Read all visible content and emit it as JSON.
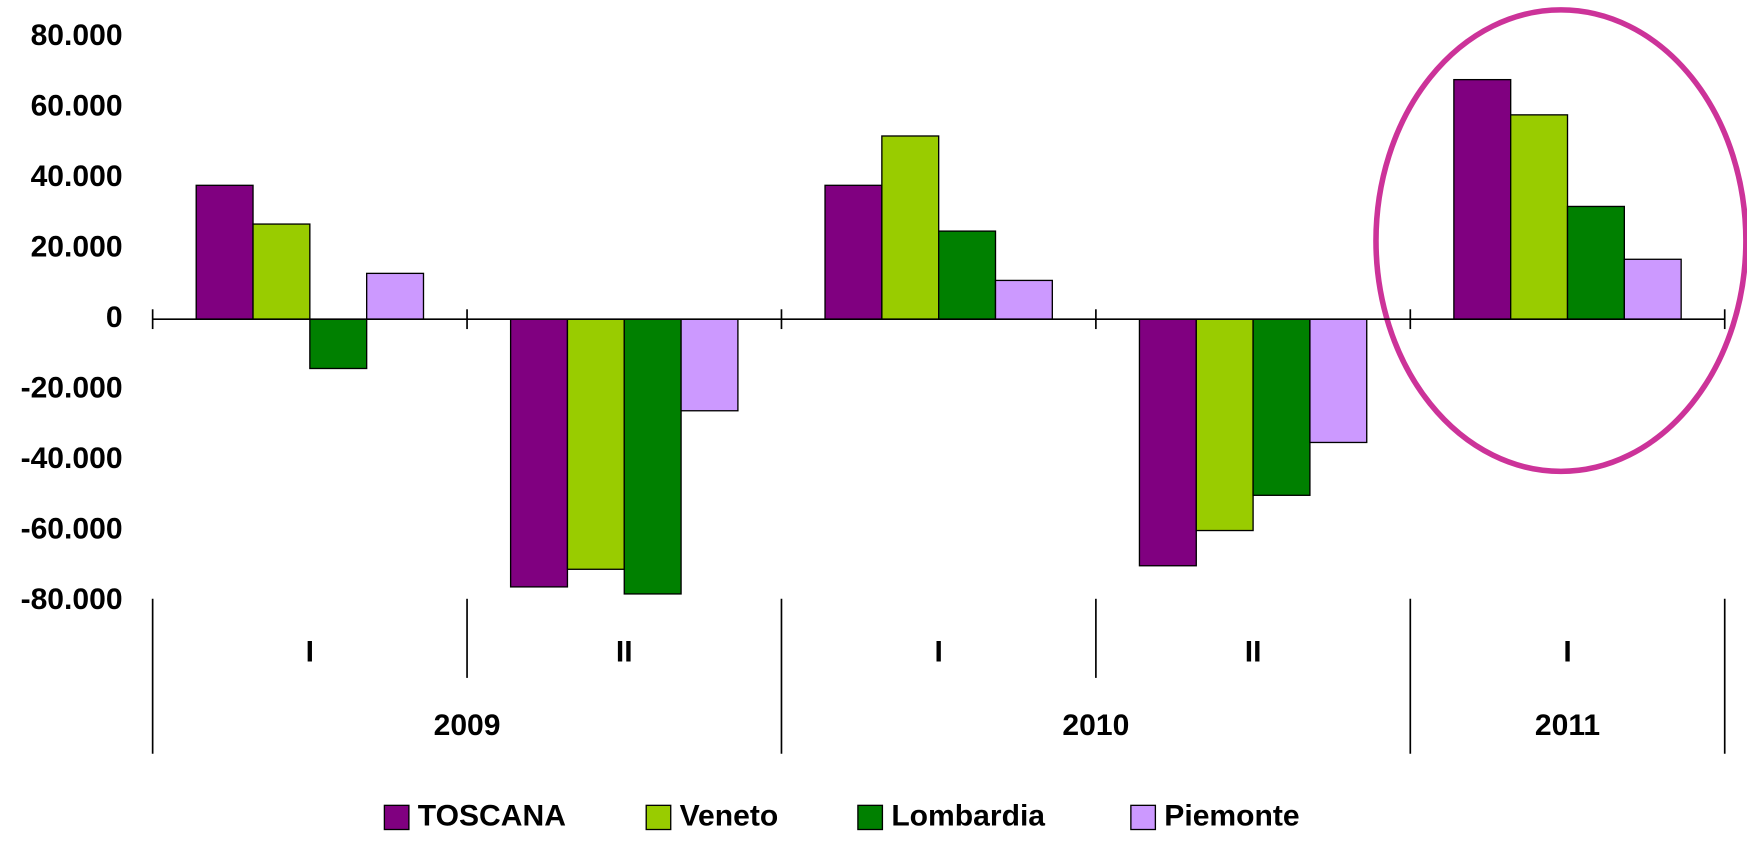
{
  "chart_data": {
    "type": "bar",
    "groups": [
      {
        "label": "2009",
        "categories": [
          "I",
          "II"
        ]
      },
      {
        "label": "2010",
        "categories": [
          "I",
          "II"
        ]
      },
      {
        "label": "2011",
        "categories": [
          "I"
        ]
      }
    ],
    "series": [
      {
        "name": "TOSCANA",
        "color": "#800080",
        "values": [
          38000,
          -76000,
          38000,
          -70000,
          68000
        ]
      },
      {
        "name": "Veneto",
        "color": "#99cc00",
        "values": [
          27000,
          -71000,
          52000,
          -60000,
          58000
        ]
      },
      {
        "name": "Lombardia",
        "color": "#008000",
        "values": [
          -14000,
          -78000,
          25000,
          -50000,
          32000
        ]
      },
      {
        "name": "Piemonte",
        "color": "#cc99ff",
        "values": [
          13000,
          -26000,
          11000,
          -35000,
          17000
        ]
      }
    ],
    "ylim": [
      -80000,
      80000
    ],
    "yticks": [
      {
        "value": -80000,
        "label": "-80.000"
      },
      {
        "value": -60000,
        "label": "-60.000"
      },
      {
        "value": -40000,
        "label": "-40.000"
      },
      {
        "value": -20000,
        "label": "-20.000"
      },
      0,
      {
        "value": 20000,
        "label": "20.000"
      },
      {
        "value": 40000,
        "label": "40.000"
      },
      {
        "value": 60000,
        "label": "60.000"
      },
      {
        "value": 80000,
        "label": "80.000"
      }
    ],
    "legend": "bottom"
  }
}
